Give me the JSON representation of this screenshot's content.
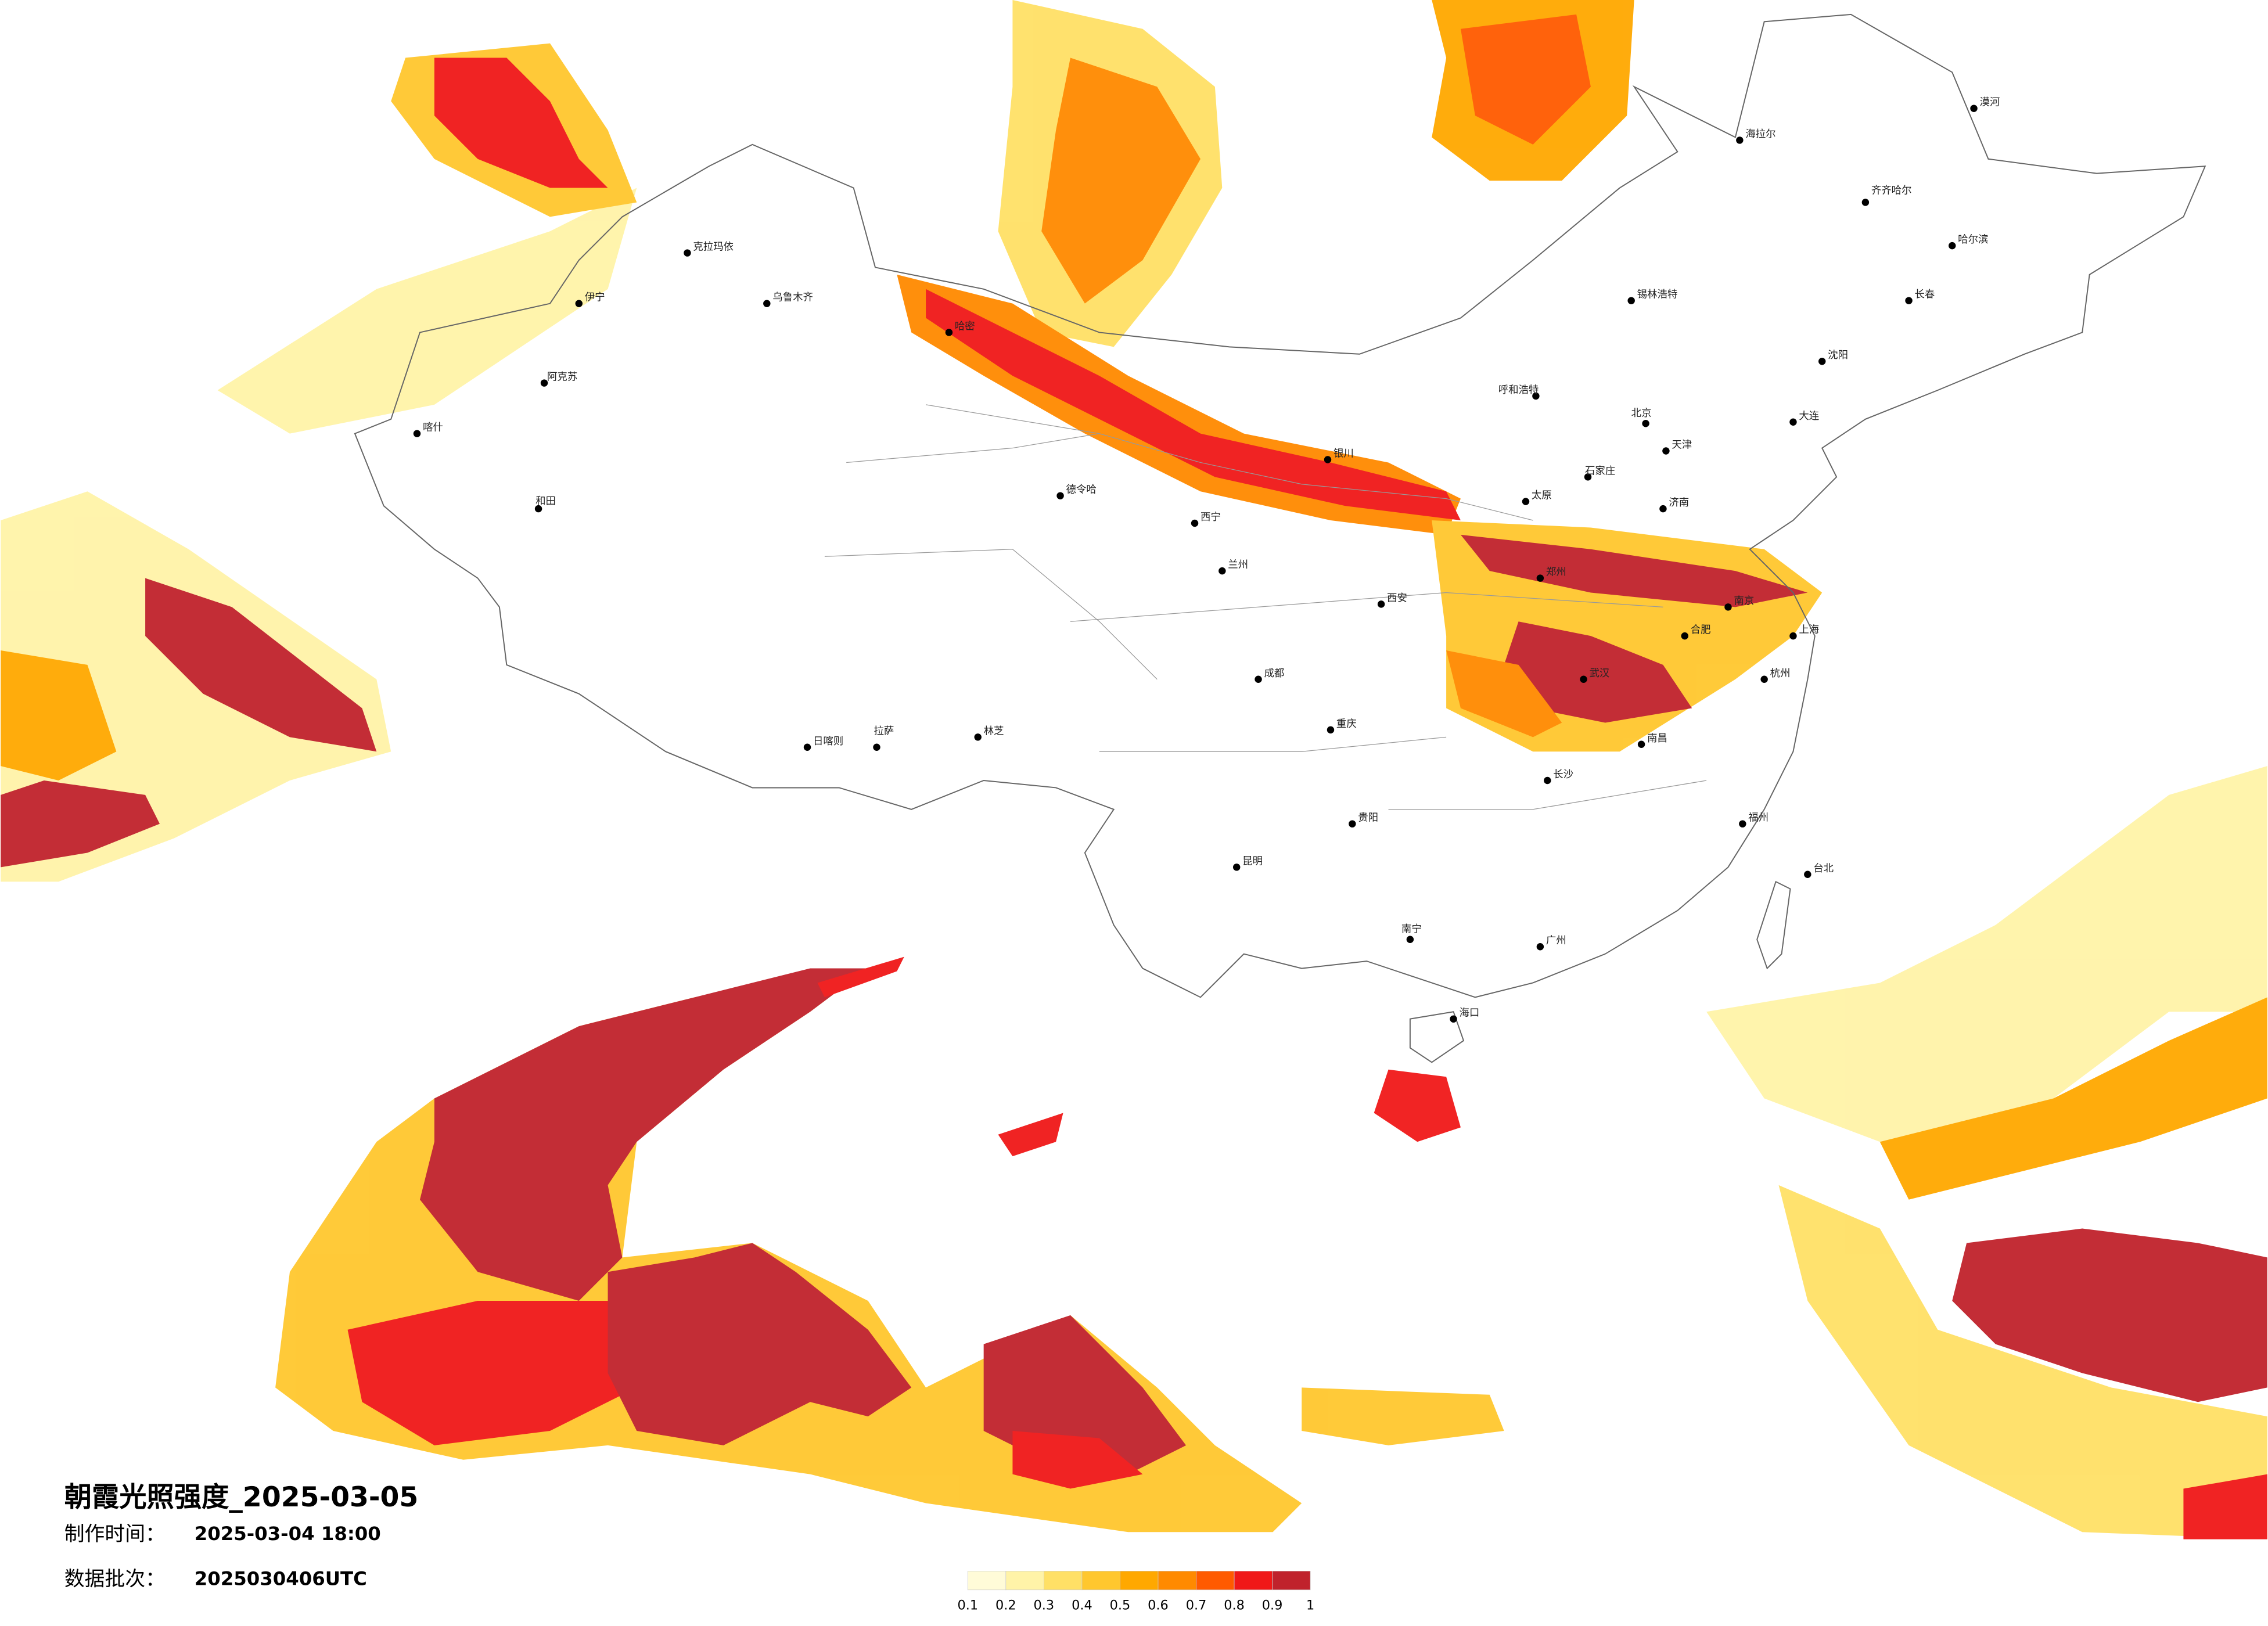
{
  "title": "朝霞光照强度_2025-03-05",
  "produced": {
    "label": "制作时间：",
    "value": "2025-03-04 18:00"
  },
  "batch": {
    "label": "数据批次：",
    "value": "2025030406UTC"
  },
  "legend": {
    "ticks": [
      0.1,
      0.2,
      0.3,
      0.4,
      0.5,
      0.6,
      0.7,
      0.8,
      0.9,
      1
    ],
    "colors": [
      "#fffbd8",
      "#fff3a8",
      "#ffe066",
      "#ffc72e",
      "#ffa800",
      "#ff8a00",
      "#ff5a00",
      "#f01818",
      "#c0222c"
    ]
  },
  "cities": [
    "克拉玛依",
    "乌鲁木齐",
    "伊宁",
    "阿克苏",
    "喀什",
    "和田",
    "哈密",
    "德令哈",
    "拉萨",
    "日喀则",
    "林芝",
    "西宁",
    "兰州",
    "银川",
    "呼和浩特",
    "北京",
    "天津",
    "石家庄",
    "太原",
    "济南",
    "西安",
    "郑州",
    "武汉",
    "合肥",
    "南京",
    "上海",
    "杭州",
    "成都",
    "重庆",
    "长沙",
    "南昌",
    "福州",
    "贵阳",
    "昆明",
    "南宁",
    "广州",
    "海口",
    "台北",
    "沈阳",
    "长春",
    "哈尔滨",
    "齐齐哈尔",
    "海拉尔",
    "漠河",
    "锡林浩特",
    "大连"
  ]
}
